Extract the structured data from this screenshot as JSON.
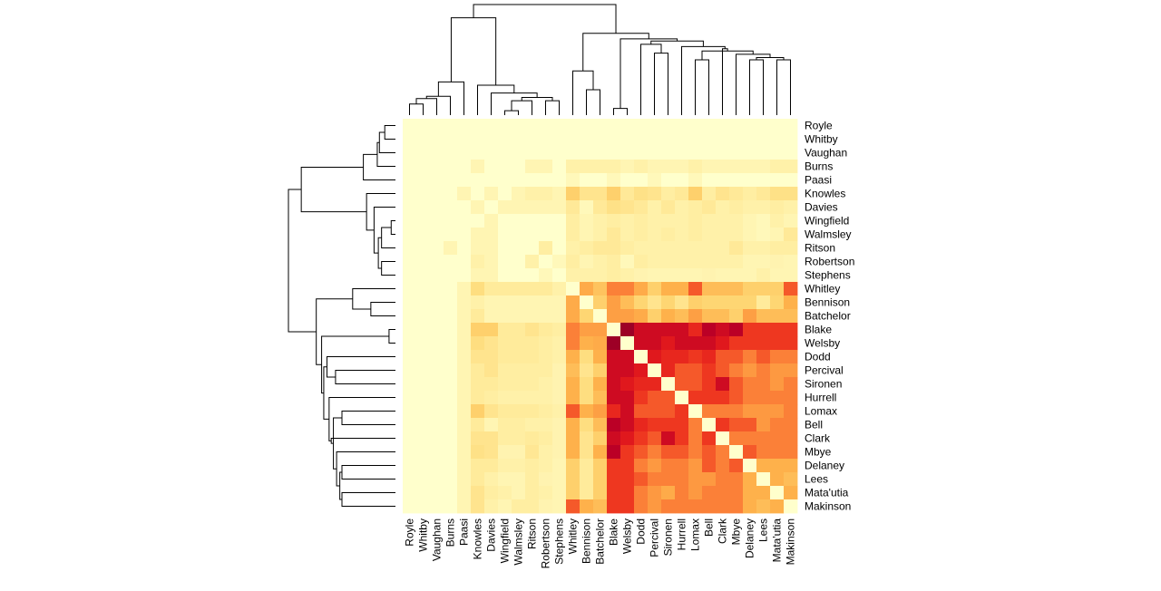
{
  "chart_data": {
    "type": "heatmap",
    "title": "",
    "xlabel": "",
    "ylabel": "",
    "legend": "none",
    "color_scale": [
      "#800026",
      "#BD0026",
      "#E31A1C",
      "#F03B20",
      "#FD8D3C",
      "#FEB24C",
      "#FED976",
      "#FFEDA0",
      "#FFFFCC"
    ],
    "low_value_color": "#800026",
    "high_value_color": "#FFFFCC",
    "value_range": [
      0,
      1
    ],
    "rows": [
      "Royle",
      "Whitby",
      "Vaughan",
      "Burns",
      "Paasi",
      "Knowles",
      "Davies",
      "Wingfield",
      "Walmsley",
      "Ritson",
      "Robertson",
      "Stephens",
      "Whitley",
      "Bennison",
      "Batchelor",
      "Blake",
      "Welsby",
      "Dodd",
      "Percival",
      "Sironen",
      "Hurrell",
      "Lomax",
      "Bell",
      "Clark",
      "Mbye",
      "Delaney",
      "Lees",
      "Mata'utia",
      "Makinson"
    ],
    "columns": [
      "Royle",
      "Whitby",
      "Vaughan",
      "Burns",
      "Paasi",
      "Knowles",
      "Davies",
      "Wingfield",
      "Walmsley",
      "Ritson",
      "Robertson",
      "Stephens",
      "Whitley",
      "Bennison",
      "Batchelor",
      "Blake",
      "Welsby",
      "Dodd",
      "Percival",
      "Sironen",
      "Hurrell",
      "Lomax",
      "Bell",
      "Clark",
      "Mbye",
      "Delaney",
      "Lees",
      "Mata'utia",
      "Makinson"
    ],
    "values": [
      [
        1,
        1,
        1,
        1,
        1,
        1,
        1,
        1,
        1,
        1,
        1,
        1,
        1,
        1,
        1,
        1,
        1,
        1,
        1,
        1,
        1,
        1,
        1,
        1,
        1,
        1,
        1,
        1,
        1
      ],
      [
        1,
        1,
        1,
        1,
        1,
        1,
        1,
        1,
        1,
        1,
        1,
        1,
        1,
        1,
        1,
        1,
        1,
        1,
        1,
        1,
        1,
        1,
        1,
        1,
        1,
        1,
        1,
        1,
        1
      ],
      [
        1,
        1,
        1,
        1,
        1,
        1,
        1,
        1,
        1,
        1,
        1,
        1,
        1,
        1,
        1,
        1,
        1,
        1,
        1,
        1,
        1,
        1,
        1,
        1,
        1,
        1,
        1,
        1,
        1
      ],
      [
        1,
        1,
        1,
        1,
        1,
        0.93,
        1,
        1,
        1,
        0.93,
        0.93,
        1,
        0.9,
        0.9,
        0.9,
        0.9,
        0.93,
        0.9,
        0.93,
        0.93,
        0.93,
        0.9,
        0.93,
        0.93,
        0.93,
        0.93,
        0.93,
        0.9,
        0.9
      ],
      [
        1,
        1,
        1,
        1,
        1,
        1,
        1,
        1,
        1,
        1,
        1,
        1,
        0.95,
        1,
        1,
        0.95,
        1,
        1,
        0.95,
        1,
        1,
        0.95,
        1,
        1,
        1,
        1,
        1,
        1,
        1
      ],
      [
        1,
        1,
        1,
        1,
        0.93,
        1,
        0.93,
        1,
        0.93,
        0.9,
        0.9,
        0.93,
        0.72,
        0.82,
        0.82,
        0.72,
        0.85,
        0.8,
        0.82,
        0.88,
        0.85,
        0.72,
        0.88,
        0.82,
        0.85,
        0.88,
        0.85,
        0.8,
        0.8
      ],
      [
        1,
        1,
        1,
        1,
        1,
        0.93,
        1,
        0.93,
        0.93,
        0.93,
        0.93,
        0.93,
        0.85,
        0.95,
        0.85,
        0.8,
        0.82,
        0.85,
        0.9,
        0.85,
        0.9,
        0.88,
        0.85,
        0.9,
        0.88,
        0.9,
        0.9,
        0.88,
        0.9
      ],
      [
        1,
        1,
        1,
        1,
        1,
        1,
        0.93,
        1,
        1,
        1,
        1,
        1,
        0.88,
        0.93,
        0.9,
        0.88,
        0.9,
        0.88,
        0.9,
        0.9,
        0.9,
        0.88,
        0.9,
        0.9,
        0.9,
        0.93,
        0.95,
        0.9,
        0.93
      ],
      [
        1,
        1,
        1,
        1,
        1,
        0.93,
        0.93,
        1,
        1,
        1,
        1,
        1,
        0.88,
        0.93,
        0.9,
        0.85,
        0.9,
        0.88,
        0.9,
        0.88,
        0.9,
        0.88,
        0.9,
        0.9,
        0.9,
        0.93,
        0.95,
        0.93,
        0.85
      ],
      [
        1,
        1,
        1,
        0.93,
        1,
        0.93,
        0.93,
        1,
        1,
        1,
        0.88,
        1,
        0.9,
        0.88,
        0.85,
        0.85,
        0.88,
        0.9,
        0.9,
        0.9,
        0.9,
        0.9,
        0.9,
        0.9,
        0.85,
        0.9,
        0.9,
        0.88,
        0.88
      ],
      [
        1,
        1,
        1,
        1,
        1,
        0.9,
        0.93,
        1,
        1,
        0.9,
        1,
        0.95,
        0.88,
        0.93,
        0.9,
        0.88,
        0.95,
        0.88,
        0.9,
        0.9,
        0.9,
        0.9,
        0.9,
        0.9,
        0.9,
        0.93,
        0.93,
        0.92,
        0.93
      ],
      [
        1,
        1,
        1,
        1,
        1,
        0.93,
        0.93,
        1,
        1,
        1,
        0.95,
        1,
        0.9,
        0.9,
        0.9,
        0.88,
        0.9,
        0.92,
        0.93,
        0.93,
        0.93,
        0.93,
        0.92,
        0.93,
        0.93,
        0.93,
        0.9,
        0.93,
        0.93
      ],
      [
        1,
        1,
        1,
        1,
        0.93,
        0.78,
        0.86,
        0.86,
        0.86,
        0.86,
        0.86,
        0.9,
        1,
        0.6,
        0.68,
        0.48,
        0.48,
        0.6,
        0.72,
        0.62,
        0.62,
        0.42,
        0.66,
        0.66,
        0.66,
        0.72,
        0.72,
        0.72,
        0.42
      ],
      [
        1,
        1,
        1,
        1,
        0.93,
        0.9,
        0.93,
        0.93,
        0.93,
        0.93,
        0.93,
        0.93,
        0.6,
        1,
        0.72,
        0.56,
        0.66,
        0.74,
        0.82,
        0.74,
        0.82,
        0.72,
        0.74,
        0.74,
        0.74,
        0.74,
        0.86,
        0.74,
        0.62
      ],
      [
        1,
        1,
        1,
        1,
        0.93,
        0.86,
        0.93,
        0.93,
        0.93,
        0.93,
        0.93,
        0.93,
        0.6,
        0.74,
        1,
        0.56,
        0.56,
        0.6,
        0.72,
        0.62,
        0.66,
        0.56,
        0.66,
        0.66,
        0.72,
        0.56,
        0.66,
        0.66,
        0.66
      ],
      [
        1,
        1,
        1,
        1,
        0.93,
        0.72,
        0.72,
        0.86,
        0.86,
        0.82,
        0.86,
        0.88,
        0.48,
        0.56,
        0.56,
        1,
        0.06,
        0.18,
        0.18,
        0.18,
        0.18,
        0.3,
        0.12,
        0.18,
        0.12,
        0.36,
        0.36,
        0.36,
        0.36
      ],
      [
        1,
        1,
        1,
        1,
        0.93,
        0.78,
        0.82,
        0.86,
        0.86,
        0.86,
        0.88,
        0.9,
        0.48,
        0.62,
        0.6,
        0.06,
        1,
        0.18,
        0.18,
        0.24,
        0.18,
        0.18,
        0.18,
        0.24,
        0.36,
        0.36,
        0.36,
        0.36,
        0.36
      ],
      [
        1,
        1,
        1,
        1,
        0.93,
        0.82,
        0.82,
        0.86,
        0.86,
        0.86,
        0.88,
        0.9,
        0.62,
        0.78,
        0.62,
        0.18,
        0.18,
        1,
        0.24,
        0.3,
        0.3,
        0.36,
        0.3,
        0.42,
        0.42,
        0.48,
        0.42,
        0.48,
        0.48
      ],
      [
        1,
        1,
        1,
        1,
        0.93,
        0.86,
        0.82,
        0.88,
        0.88,
        0.88,
        0.88,
        0.92,
        0.66,
        0.82,
        0.72,
        0.18,
        0.18,
        0.24,
        1,
        0.3,
        0.42,
        0.42,
        0.36,
        0.42,
        0.48,
        0.54,
        0.48,
        0.54,
        0.54
      ],
      [
        1,
        1,
        1,
        1,
        0.93,
        0.86,
        0.86,
        0.88,
        0.88,
        0.88,
        0.9,
        0.92,
        0.62,
        0.78,
        0.62,
        0.18,
        0.24,
        0.3,
        0.3,
        1,
        0.42,
        0.42,
        0.36,
        0.18,
        0.42,
        0.48,
        0.48,
        0.54,
        0.48
      ],
      [
        1,
        1,
        1,
        1,
        0.93,
        0.86,
        0.88,
        0.9,
        0.9,
        0.9,
        0.9,
        0.92,
        0.62,
        0.78,
        0.66,
        0.18,
        0.18,
        0.36,
        0.42,
        0.42,
        1,
        0.36,
        0.36,
        0.36,
        0.42,
        0.48,
        0.48,
        0.48,
        0.48
      ],
      [
        1,
        1,
        1,
        1,
        0.93,
        0.72,
        0.82,
        0.86,
        0.86,
        0.86,
        0.88,
        0.9,
        0.42,
        0.62,
        0.56,
        0.3,
        0.18,
        0.42,
        0.42,
        0.42,
        0.36,
        1,
        0.48,
        0.48,
        0.48,
        0.54,
        0.54,
        0.54,
        0.48
      ],
      [
        1,
        1,
        1,
        1,
        0.93,
        0.86,
        0.93,
        0.88,
        0.88,
        0.9,
        0.9,
        0.92,
        0.62,
        0.78,
        0.66,
        0.12,
        0.18,
        0.3,
        0.36,
        0.36,
        0.36,
        0.48,
        1,
        0.36,
        0.42,
        0.42,
        0.54,
        0.48,
        0.48
      ],
      [
        1,
        1,
        1,
        1,
        0.93,
        0.82,
        0.82,
        0.88,
        0.88,
        0.86,
        0.88,
        0.92,
        0.62,
        0.82,
        0.72,
        0.18,
        0.24,
        0.36,
        0.42,
        0.18,
        0.36,
        0.48,
        0.36,
        1,
        0.48,
        0.48,
        0.48,
        0.48,
        0.48
      ],
      [
        1,
        1,
        1,
        1,
        0.93,
        0.8,
        0.82,
        0.92,
        0.92,
        0.84,
        0.9,
        0.92,
        0.62,
        0.82,
        0.62,
        0.12,
        0.36,
        0.42,
        0.48,
        0.42,
        0.42,
        0.48,
        0.42,
        0.48,
        1,
        0.42,
        0.48,
        0.48,
        0.48
      ],
      [
        1,
        1,
        1,
        1,
        0.93,
        0.86,
        0.86,
        0.9,
        0.9,
        0.88,
        0.9,
        0.93,
        0.72,
        0.86,
        0.72,
        0.36,
        0.36,
        0.48,
        0.54,
        0.48,
        0.48,
        0.54,
        0.42,
        0.48,
        0.42,
        1,
        0.62,
        0.62,
        0.62
      ],
      [
        1,
        1,
        1,
        1,
        0.93,
        0.86,
        0.9,
        0.93,
        0.93,
        0.88,
        0.92,
        0.93,
        0.72,
        0.86,
        0.72,
        0.36,
        0.36,
        0.42,
        0.48,
        0.48,
        0.48,
        0.54,
        0.54,
        0.48,
        0.48,
        0.62,
        1,
        0.62,
        0.66
      ],
      [
        1,
        1,
        1,
        1,
        0.93,
        0.82,
        0.88,
        0.9,
        0.93,
        0.88,
        0.9,
        0.93,
        0.72,
        0.86,
        0.72,
        0.36,
        0.36,
        0.48,
        0.54,
        0.6,
        0.48,
        0.54,
        0.48,
        0.48,
        0.48,
        0.62,
        0.62,
        1,
        0.62
      ],
      [
        1,
        1,
        1,
        1,
        0.93,
        0.82,
        0.9,
        0.93,
        0.88,
        0.88,
        0.92,
        0.93,
        0.42,
        0.62,
        0.66,
        0.36,
        0.36,
        0.48,
        0.54,
        0.48,
        0.48,
        0.48,
        0.48,
        0.48,
        0.48,
        0.62,
        0.66,
        0.62,
        1
      ]
    ],
    "col_dendrogram": [
      [
        0,
        1,
        0,
        1,
        0.1,
        -1
      ],
      [
        -1,
        2,
        0,
        -2,
        0.15,
        -2
      ],
      [
        -2,
        3,
        0,
        -3,
        0.17,
        -3
      ],
      [
        -3,
        4,
        0,
        -4,
        0.3,
        -4
      ],
      [
        7,
        8,
        0,
        0,
        0.04,
        -5
      ],
      [
        9,
        -5,
        0,
        -5,
        0.13,
        -6
      ],
      [
        10,
        11,
        0,
        0,
        0.13,
        -7
      ],
      [
        -6,
        -7,
        -6,
        -7,
        0.16,
        -8
      ],
      [
        6,
        -8,
        0,
        -8,
        0.2,
        -9
      ],
      [
        5,
        -9,
        0,
        -9,
        0.27,
        -10
      ],
      [
        -4,
        -10,
        -4,
        -10,
        0.88,
        -11
      ],
      [
        13,
        14,
        0,
        0,
        0.23,
        -12
      ],
      [
        12,
        -12,
        0,
        -12,
        0.4,
        -13
      ],
      [
        15,
        16,
        0,
        0,
        0.06,
        -14
      ],
      [
        18,
        19,
        0,
        0,
        0.56,
        -15
      ],
      [
        21,
        22,
        0,
        0,
        0.5,
        -16
      ],
      [
        25,
        26,
        0,
        0,
        0.5,
        -17
      ],
      [
        27,
        28,
        0,
        0,
        0.5,
        -18
      ],
      [
        -17,
        -18,
        -17,
        -18,
        0.52,
        -19
      ],
      [
        24,
        -19,
        0,
        -19,
        0.55,
        -20
      ],
      [
        -16,
        -20,
        -16,
        -20,
        0.58,
        -21
      ],
      [
        23,
        -21,
        0,
        -21,
        0.6,
        -22
      ],
      [
        20,
        -22,
        0,
        -22,
        0.62,
        -23
      ],
      [
        17,
        -15,
        0,
        -15,
        0.64,
        -24
      ],
      [
        -23,
        -24,
        -23,
        -24,
        0.67,
        -25
      ],
      [
        -14,
        -25,
        -14,
        -25,
        0.69,
        -26
      ],
      [
        -13,
        -26,
        -13,
        -26,
        0.74,
        -27
      ],
      [
        -11,
        -27,
        -11,
        -27,
        1,
        -28
      ]
    ]
  }
}
